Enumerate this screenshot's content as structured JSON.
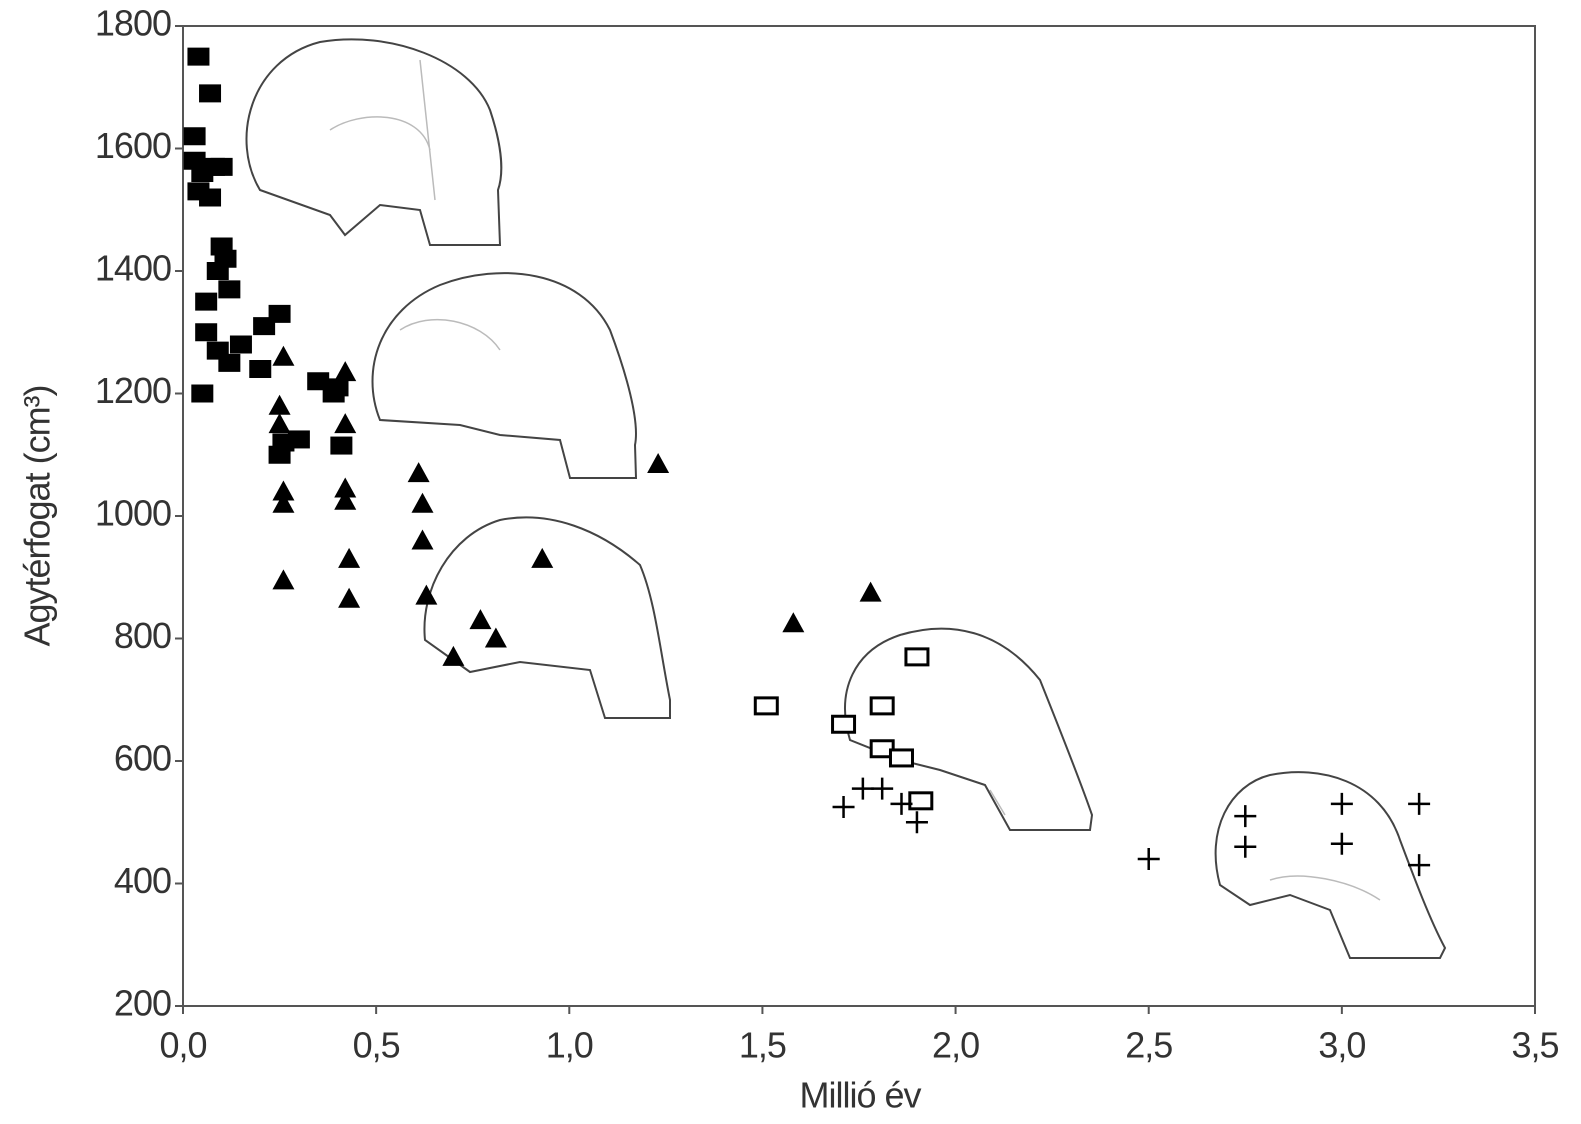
{
  "chart_data": {
    "type": "scatter",
    "xlabel": "Millió év",
    "ylabel": "Agytérfogat (cm³)",
    "xlim": [
      0,
      3.5
    ],
    "ylim": [
      200,
      1800
    ],
    "xticks": [
      {
        "value": 0,
        "label": "0,0"
      },
      {
        "value": 0.5,
        "label": "0,5"
      },
      {
        "value": 1,
        "label": "1,0"
      },
      {
        "value": 1.5,
        "label": "1,5"
      },
      {
        "value": 2,
        "label": "2,0"
      },
      {
        "value": 2.5,
        "label": "2,5"
      },
      {
        "value": 3,
        "label": "3,0"
      },
      {
        "value": 3.5,
        "label": "3,5"
      }
    ],
    "yticks": [
      200,
      400,
      600,
      800,
      1000,
      1200,
      1400,
      1600,
      1800
    ],
    "grid": false,
    "series": [
      {
        "marker": "square-filled",
        "color": "#000000",
        "x": [
          0.04,
          0.07,
          0.03,
          0.03,
          0.05,
          0.08,
          0.1,
          0.04,
          0.07,
          0.1,
          0.11,
          0.09,
          0.12,
          0.06,
          0.25,
          0.21,
          0.06,
          0.15,
          0.09,
          0.12,
          0.2,
          0.05,
          0.35,
          0.4,
          0.39,
          0.26,
          0.3,
          0.25,
          0.41
        ],
        "y": [
          1750,
          1690,
          1620,
          1580,
          1560,
          1570,
          1570,
          1530,
          1520,
          1440,
          1420,
          1400,
          1370,
          1350,
          1330,
          1310,
          1300,
          1280,
          1270,
          1250,
          1240,
          1200,
          1220,
          1210,
          1200,
          1120,
          1125,
          1100,
          1115
        ]
      },
      {
        "marker": "triangle",
        "color": "#000000",
        "x": [
          0.26,
          0.25,
          0.25,
          0.26,
          0.26,
          0.26,
          0.42,
          0.42,
          0.42,
          0.42,
          0.43,
          0.43,
          0.61,
          0.62,
          0.62,
          0.63,
          0.7,
          0.77,
          0.81,
          0.93,
          1.23,
          1.58,
          1.78
        ],
        "y": [
          1260,
          1180,
          1150,
          1040,
          1020,
          895,
          1235,
          1150,
          1045,
          1025,
          930,
          865,
          1070,
          1020,
          960,
          870,
          770,
          830,
          800,
          930,
          1085,
          825,
          875
        ]
      },
      {
        "marker": "square-open",
        "color": "#000000",
        "x": [
          1.51,
          1.71,
          1.81,
          1.9,
          1.81,
          1.86,
          1.91
        ],
        "y": [
          690,
          660,
          690,
          770,
          620,
          605,
          535
        ]
      },
      {
        "marker": "plus",
        "color": "#000000",
        "x": [
          1.71,
          1.76,
          1.81,
          1.86,
          1.9,
          2.5,
          2.75,
          2.75,
          3.0,
          3.0,
          3.2,
          3.2
        ],
        "y": [
          525,
          555,
          555,
          530,
          500,
          440,
          510,
          460,
          530,
          465,
          530,
          430
        ]
      }
    ]
  }
}
